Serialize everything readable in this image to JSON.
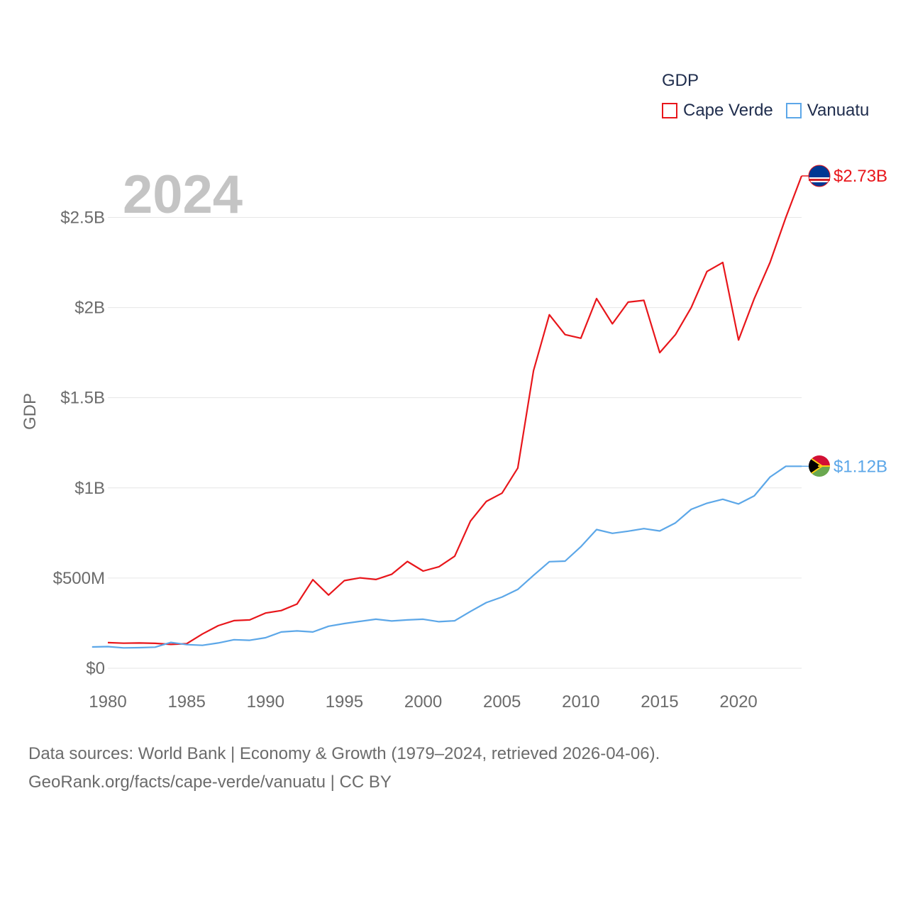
{
  "chart_data": {
    "type": "line",
    "year_label": "2024",
    "ylabel": "GDP",
    "legend_title": "GDP",
    "legend_position": "top-right",
    "x": [
      1979,
      1980,
      1981,
      1982,
      1983,
      1984,
      1985,
      1986,
      1987,
      1988,
      1989,
      1990,
      1991,
      1992,
      1993,
      1994,
      1995,
      1996,
      1997,
      1998,
      1999,
      2000,
      2001,
      2002,
      2003,
      2004,
      2005,
      2006,
      2007,
      2008,
      2009,
      2010,
      2011,
      2012,
      2013,
      2014,
      2015,
      2016,
      2017,
      2018,
      2019,
      2020,
      2021,
      2022,
      2023,
      2024
    ],
    "xlim": [
      1980,
      2024
    ],
    "x_ticks": [
      1980,
      1985,
      1990,
      1995,
      2000,
      2005,
      2010,
      2015,
      2020
    ],
    "ylim": [
      0,
      2730000000
    ],
    "y_ticks": [
      0,
      500000000,
      1000000000,
      1500000000,
      2000000000,
      2500000000
    ],
    "y_tick_labels": [
      "$0",
      "$500M",
      "$1B",
      "$1.5B",
      "$2B",
      "$2.5B"
    ],
    "series": [
      {
        "name": "Cape Verde",
        "color": "#e8161b",
        "end_label": "$2.73B",
        "values": [
          null,
          142000000,
          139000000,
          140000000,
          138000000,
          132000000,
          136000000,
          190000000,
          236000000,
          264000000,
          268000000,
          306000000,
          320000000,
          356000000,
          491000000,
          406000000,
          486000000,
          501000000,
          492000000,
          521000000,
          592000000,
          539000000,
          563000000,
          621000000,
          816000000,
          925000000,
          971000000,
          1110000000,
          1650000000,
          1960000000,
          1850000000,
          1830000000,
          2050000000,
          1910000000,
          2030000000,
          2040000000,
          1750000000,
          1850000000,
          2000000000,
          2200000000,
          2250000000,
          1820000000,
          2050000000,
          2250000000,
          2500000000,
          2730000000
        ]
      },
      {
        "name": "Vanuatu",
        "color": "#5ca7e8",
        "end_label": "$1.12B",
        "values": [
          118000000,
          120000000,
          113000000,
          114000000,
          117000000,
          143000000,
          131000000,
          127000000,
          140000000,
          158000000,
          155000000,
          169000000,
          201000000,
          207000000,
          201000000,
          233000000,
          248000000,
          260000000,
          272000000,
          262000000,
          268000000,
          272000000,
          258000000,
          263000000,
          315000000,
          364000000,
          395000000,
          437000000,
          515000000,
          591000000,
          594000000,
          674000000,
          769000000,
          748000000,
          760000000,
          774000000,
          761000000,
          806000000,
          881000000,
          915000000,
          937000000,
          911000000,
          956000000,
          1060000000,
          1120000000,
          1120000000
        ]
      }
    ]
  },
  "footer": {
    "line1": "Data sources: World Bank | Economy & Growth (1979–2024, retrieved 2026-04-06).",
    "line2": "GeoRank.org/facts/cape-verde/vanuatu | CC BY"
  }
}
